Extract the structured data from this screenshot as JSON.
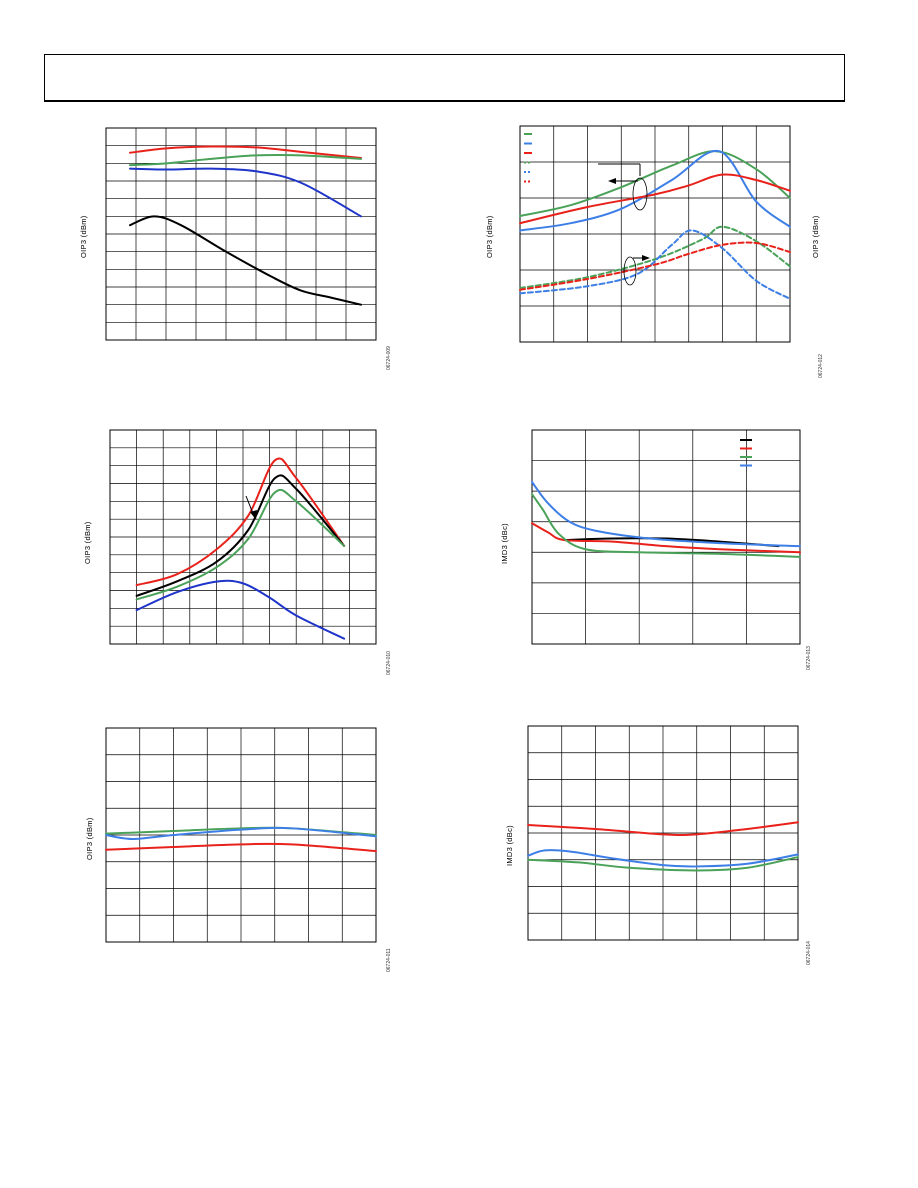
{
  "header": {},
  "colors": {
    "black": "#000000",
    "red": "#e8221b",
    "green": "#4aa259",
    "blue": "#1f35c9",
    "lightblue": "#3d7fe6"
  },
  "chart_data": [
    {
      "id": "c1",
      "type": "line",
      "ylabel": "OIP3 (dBm)",
      "fig_id": "06724-009",
      "grid": true,
      "grid_cols": 9,
      "grid_rows": 12,
      "xlim": [
        0,
        9
      ],
      "ylim": [
        0,
        12
      ],
      "series": [
        {
          "color": "red",
          "dash": false,
          "points": [
            [
              0.8,
              10.6
            ],
            [
              2,
              10.85
            ],
            [
              3.5,
              10.95
            ],
            [
              5,
              10.9
            ],
            [
              6.5,
              10.65
            ],
            [
              8.5,
              10.3
            ]
          ]
        },
        {
          "color": "green",
          "dash": false,
          "points": [
            [
              0.8,
              9.9
            ],
            [
              2,
              10.0
            ],
            [
              3.5,
              10.25
            ],
            [
              5,
              10.45
            ],
            [
              6.5,
              10.45
            ],
            [
              8.5,
              10.25
            ]
          ]
        },
        {
          "color": "blue",
          "dash": false,
          "points": [
            [
              0.8,
              9.7
            ],
            [
              2,
              9.65
            ],
            [
              3.5,
              9.7
            ],
            [
              5,
              9.55
            ],
            [
              6.5,
              8.9
            ],
            [
              8.5,
              7.0
            ]
          ]
        },
        {
          "color": "black",
          "dash": false,
          "points": [
            [
              0.8,
              6.5
            ],
            [
              1.6,
              7.0
            ],
            [
              2.5,
              6.5
            ],
            [
              4,
              5.0
            ],
            [
              5.5,
              3.6
            ],
            [
              6.5,
              2.8
            ],
            [
              7.5,
              2.4
            ],
            [
              8.5,
              2.0
            ]
          ]
        }
      ]
    },
    {
      "id": "c2",
      "type": "line",
      "ylabel": "OIP3 (dBm)",
      "ylabel2": "OIP3 (dBm)",
      "fig_id": "06724-012",
      "grid": true,
      "grid_cols": 8,
      "grid_rows": 6,
      "xlim": [
        0,
        8
      ],
      "ylim": [
        0,
        6
      ],
      "legend_entries": [
        {
          "color": "green",
          "dash": false
        },
        {
          "color": "lightblue",
          "dash": false
        },
        {
          "color": "red",
          "dash": false
        },
        {
          "color": "green",
          "dash": true
        },
        {
          "color": "lightblue",
          "dash": true
        },
        {
          "color": "red",
          "dash": true
        }
      ],
      "series": [
        {
          "color": "green",
          "dash": false,
          "points": [
            [
              0,
              3.5
            ],
            [
              1.5,
              3.8
            ],
            [
              3,
              4.3
            ],
            [
              4.5,
              4.9
            ],
            [
              5.8,
              5.3
            ],
            [
              7,
              4.8
            ],
            [
              8,
              4.0
            ]
          ]
        },
        {
          "color": "lightblue",
          "dash": false,
          "points": [
            [
              0,
              3.1
            ],
            [
              1.5,
              3.3
            ],
            [
              3,
              3.7
            ],
            [
              4.5,
              4.5
            ],
            [
              5.9,
              5.3
            ],
            [
              7,
              3.9
            ],
            [
              8,
              3.2
            ]
          ]
        },
        {
          "color": "red",
          "dash": false,
          "points": [
            [
              0,
              3.3
            ],
            [
              2,
              3.75
            ],
            [
              4,
              4.1
            ],
            [
              5,
              4.35
            ],
            [
              6,
              4.65
            ],
            [
              7,
              4.5
            ],
            [
              8,
              4.2
            ]
          ]
        },
        {
          "color": "green",
          "dash": true,
          "points": [
            [
              0,
              1.5
            ],
            [
              2,
              1.8
            ],
            [
              4,
              2.3
            ],
            [
              5.4,
              2.85
            ],
            [
              6,
              3.2
            ],
            [
              7,
              2.8
            ],
            [
              8,
              2.1
            ]
          ]
        },
        {
          "color": "lightblue",
          "dash": true,
          "points": [
            [
              0,
              1.35
            ],
            [
              2,
              1.55
            ],
            [
              3.5,
              1.9
            ],
            [
              4.5,
              2.7
            ],
            [
              5.1,
              3.1
            ],
            [
              6,
              2.6
            ],
            [
              7,
              1.7
            ],
            [
              8,
              1.2
            ]
          ]
        },
        {
          "color": "red",
          "dash": true,
          "points": [
            [
              0,
              1.45
            ],
            [
              2,
              1.75
            ],
            [
              4,
              2.15
            ],
            [
              5,
              2.45
            ],
            [
              6,
              2.7
            ],
            [
              7,
              2.75
            ],
            [
              8,
              2.5
            ]
          ]
        }
      ]
    },
    {
      "id": "c3",
      "type": "line",
      "ylabel": "OIP3 (dBm)",
      "fig_id": "06724-010",
      "grid": true,
      "grid_cols": 10,
      "grid_rows": 12,
      "xlim": [
        0,
        10
      ],
      "ylim": [
        0,
        12
      ],
      "series": [
        {
          "color": "red",
          "dash": false,
          "points": [
            [
              1,
              3.3
            ],
            [
              2.5,
              3.9
            ],
            [
              4,
              5.3
            ],
            [
              5.2,
              7.2
            ],
            [
              6.2,
              10.3
            ],
            [
              7,
              9.3
            ],
            [
              8.8,
              5.5
            ]
          ]
        },
        {
          "color": "black",
          "dash": false,
          "points": [
            [
              1,
              2.7
            ],
            [
              2.5,
              3.5
            ],
            [
              4,
              4.6
            ],
            [
              5.2,
              6.4
            ],
            [
              6.2,
              9.3
            ],
            [
              7,
              8.7
            ],
            [
              8.8,
              5.5
            ]
          ]
        },
        {
          "color": "green",
          "dash": false,
          "points": [
            [
              1,
              2.5
            ],
            [
              2.5,
              3.2
            ],
            [
              4,
              4.3
            ],
            [
              5.2,
              5.9
            ],
            [
              6.2,
              8.5
            ],
            [
              7,
              8.0
            ],
            [
              8.8,
              5.5
            ]
          ]
        },
        {
          "color": "blue",
          "dash": false,
          "points": [
            [
              1,
              1.9
            ],
            [
              2.5,
              2.9
            ],
            [
              4,
              3.5
            ],
            [
              5,
              3.4
            ],
            [
              6,
              2.6
            ],
            [
              7,
              1.6
            ],
            [
              8.8,
              0.3
            ]
          ]
        }
      ]
    },
    {
      "id": "c4",
      "type": "line",
      "ylabel": "IMD3 (dBc)",
      "fig_id": "06724-013",
      "grid": true,
      "grid_cols": 5,
      "grid_rows": 7,
      "xlim": [
        0,
        5
      ],
      "ylim": [
        0,
        7
      ],
      "legend_entries": [
        {
          "color": "black",
          "dash": false
        },
        {
          "color": "red",
          "dash": false
        },
        {
          "color": "green",
          "dash": false
        },
        {
          "color": "lightblue",
          "dash": false
        }
      ],
      "series": [
        {
          "color": "black",
          "dash": false,
          "points": [
            [
              0.6,
              3.4
            ],
            [
              1.5,
              3.45
            ],
            [
              2.5,
              3.45
            ],
            [
              3.5,
              3.35
            ],
            [
              4.6,
              3.2
            ]
          ]
        },
        {
          "color": "red",
          "dash": false,
          "points": [
            [
              0,
              3.95
            ],
            [
              0.3,
              3.65
            ],
            [
              0.6,
              3.4
            ],
            [
              1.5,
              3.35
            ],
            [
              2.5,
              3.2
            ],
            [
              3.5,
              3.1
            ],
            [
              5,
              3.0
            ]
          ]
        },
        {
          "color": "green",
          "dash": false,
          "points": [
            [
              0,
              4.9
            ],
            [
              0.2,
              4.4
            ],
            [
              0.5,
              3.6
            ],
            [
              1,
              3.1
            ],
            [
              2,
              3.0
            ],
            [
              3.5,
              2.95
            ],
            [
              5,
              2.85
            ]
          ]
        },
        {
          "color": "lightblue",
          "dash": false,
          "points": [
            [
              0,
              5.3
            ],
            [
              0.3,
              4.6
            ],
            [
              0.7,
              4.0
            ],
            [
              1.2,
              3.7
            ],
            [
              2.2,
              3.45
            ],
            [
              3.5,
              3.3
            ],
            [
              5,
              3.2
            ]
          ]
        }
      ]
    },
    {
      "id": "c5",
      "type": "line",
      "ylabel": "OIP3 (dBm)",
      "fig_id": "06724-011",
      "grid": true,
      "grid_cols": 8,
      "grid_rows": 8,
      "xlim": [
        0,
        8
      ],
      "ylim": [
        0,
        8
      ],
      "series": [
        {
          "color": "green",
          "dash": false,
          "points": [
            [
              0,
              4.05
            ],
            [
              2,
              4.15
            ],
            [
              4,
              4.25
            ],
            [
              5.5,
              4.25
            ],
            [
              8,
              4.0
            ]
          ]
        },
        {
          "color": "lightblue",
          "dash": false,
          "points": [
            [
              0,
              4.0
            ],
            [
              0.8,
              3.85
            ],
            [
              2,
              4.0
            ],
            [
              4,
              4.2
            ],
            [
              5.5,
              4.25
            ],
            [
              8,
              3.95
            ]
          ]
        },
        {
          "color": "red",
          "dash": false,
          "points": [
            [
              0,
              3.45
            ],
            [
              2,
              3.55
            ],
            [
              4,
              3.65
            ],
            [
              5.5,
              3.65
            ],
            [
              8,
              3.4
            ]
          ]
        }
      ]
    },
    {
      "id": "c6",
      "type": "line",
      "ylabel": "IMD3 (dBc)",
      "fig_id": "06724-014",
      "grid": true,
      "grid_cols": 8,
      "grid_rows": 8,
      "xlim": [
        0,
        8
      ],
      "ylim": [
        0,
        8
      ],
      "series": [
        {
          "color": "red",
          "dash": false,
          "points": [
            [
              0,
              4.3
            ],
            [
              2,
              4.15
            ],
            [
              4,
              3.95
            ],
            [
              5,
              3.95
            ],
            [
              6.5,
              4.15
            ],
            [
              8,
              4.4
            ]
          ]
        },
        {
          "color": "lightblue",
          "dash": false,
          "points": [
            [
              0,
              3.15
            ],
            [
              0.5,
              3.35
            ],
            [
              1.3,
              3.3
            ],
            [
              2.5,
              3.05
            ],
            [
              4,
              2.8
            ],
            [
              5,
              2.75
            ],
            [
              6.5,
              2.85
            ],
            [
              8,
              3.2
            ]
          ]
        },
        {
          "color": "green",
          "dash": false,
          "points": [
            [
              0,
              3.0
            ],
            [
              1.5,
              2.9
            ],
            [
              3,
              2.7
            ],
            [
              5,
              2.6
            ],
            [
              6.5,
              2.7
            ],
            [
              8,
              3.1
            ]
          ]
        }
      ]
    }
  ]
}
